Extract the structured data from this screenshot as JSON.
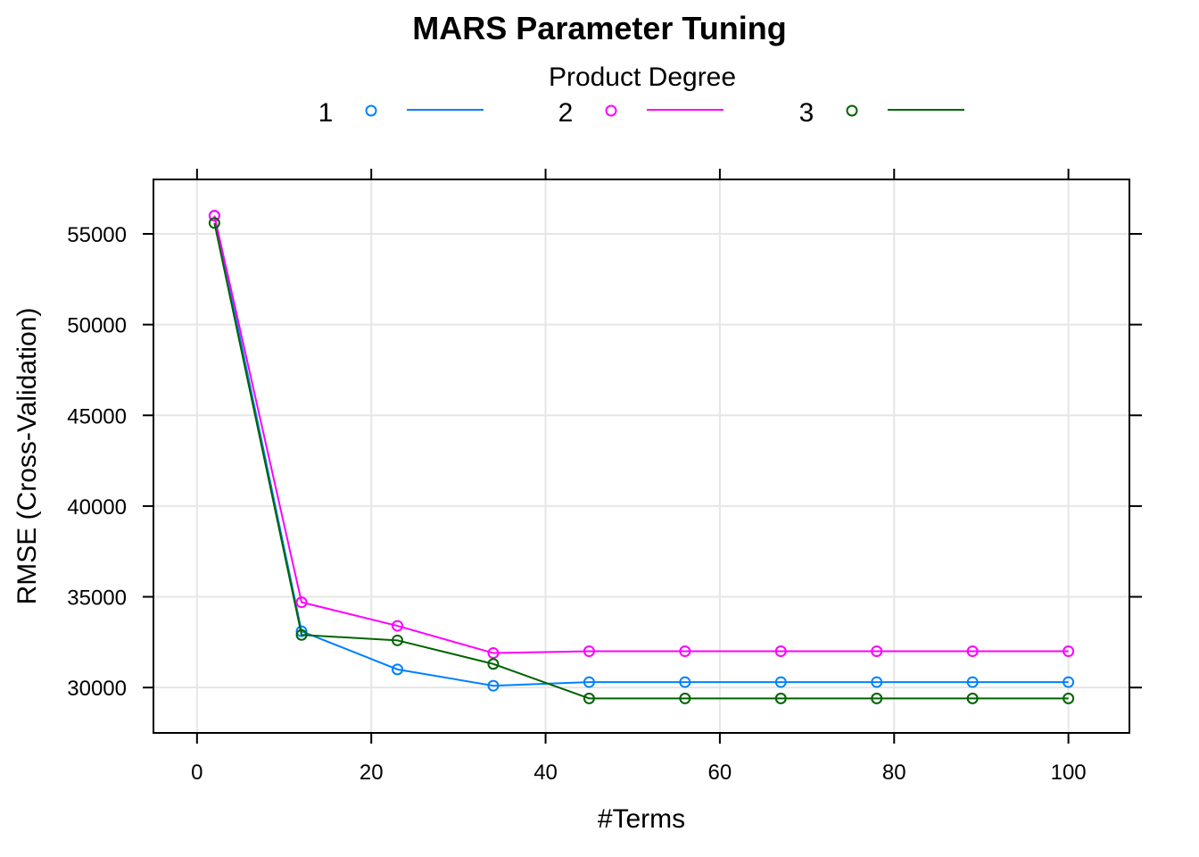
{
  "chart_data": {
    "type": "line",
    "title": "MARS Parameter Tuning",
    "xlabel": "#Terms",
    "ylabel": "RMSE (Cross-Validation)",
    "xlim": [
      -5,
      107
    ],
    "ylim": [
      27500,
      58000
    ],
    "xticks": [
      0,
      20,
      40,
      60,
      80,
      100
    ],
    "yticks": [
      30000,
      35000,
      40000,
      45000,
      50000,
      55000
    ],
    "grid": true,
    "legend": {
      "title": "Product Degree",
      "placement": "top"
    },
    "x": [
      2,
      12,
      23,
      34,
      45,
      56,
      67,
      78,
      89,
      100
    ],
    "series": [
      {
        "name": "1",
        "color": "#0080ff",
        "values": [
          56000,
          33100,
          31000,
          30100,
          30300,
          30300,
          30300,
          30300,
          30300,
          30300
        ]
      },
      {
        "name": "2",
        "color": "#ff00ff",
        "values": [
          56000,
          34700,
          33400,
          31900,
          32000,
          32000,
          32000,
          32000,
          32000,
          32000
        ]
      },
      {
        "name": "3",
        "color": "#006400",
        "values": [
          55600,
          32900,
          32600,
          31300,
          29400,
          29400,
          29400,
          29400,
          29400,
          29400
        ]
      }
    ]
  }
}
